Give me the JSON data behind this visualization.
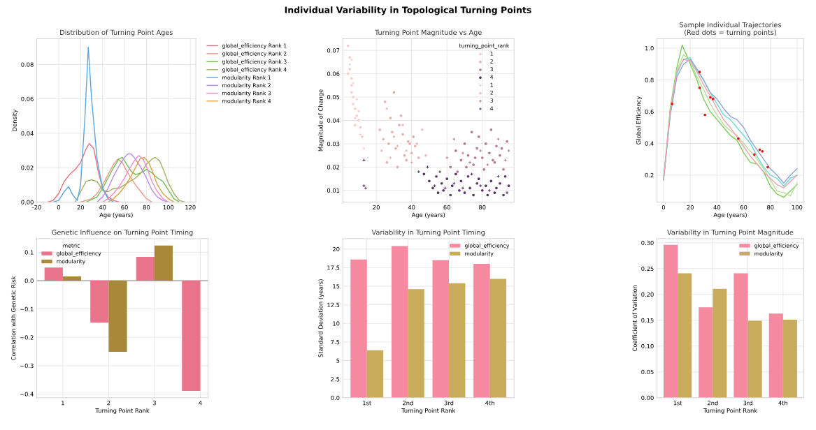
{
  "chart_data": [
    {
      "type": "line",
      "title": "Distribution of Turning Point Ages",
      "xlabel": "Age (years)",
      "ylabel": "Density",
      "annotations": [
        "Individual Variability in Topological Turning Points"
      ],
      "xlim": [
        -20,
        125
      ],
      "ylim": [
        0,
        0.095
      ],
      "xticks": [
        -20,
        0,
        20,
        40,
        60,
        80,
        100,
        120
      ],
      "yticks": [
        {
          "value": 0,
          "label": "0.00"
        },
        {
          "value": 0.02,
          "label": "0.02"
        },
        {
          "value": 0.04,
          "label": "0.04"
        },
        {
          "value": 0.06,
          "label": "0.06"
        },
        {
          "value": 0.08,
          "label": "0.08"
        }
      ],
      "grid": true,
      "legend": "right",
      "series": [
        {
          "name": "global_efficiency Rank 1",
          "color": "#e8707e",
          "x": [
            -10,
            -5,
            0,
            5,
            10,
            15,
            20,
            25,
            28,
            32,
            36,
            40,
            45,
            50,
            55
          ],
          "values": [
            0,
            0.001,
            0.005,
            0.012,
            0.016,
            0.019,
            0.023,
            0.031,
            0.034,
            0.031,
            0.018,
            0.008,
            0.003,
            0.001,
            0
          ]
        },
        {
          "name": "global_efficiency Rank 2",
          "color": "#e89a8a",
          "x": [
            20,
            30,
            35,
            40,
            45,
            50,
            54,
            58,
            62,
            66,
            70,
            75,
            80,
            85
          ],
          "values": [
            0,
            0.002,
            0.005,
            0.01,
            0.016,
            0.022,
            0.025,
            0.023,
            0.018,
            0.014,
            0.01,
            0.006,
            0.002,
            0
          ]
        },
        {
          "name": "global_efficiency Rank 3",
          "color": "#6fbf50",
          "x": [
            25,
            35,
            40,
            45,
            50,
            55,
            58,
            62,
            66,
            70,
            75,
            80,
            85,
            90,
            95,
            100,
            105,
            110
          ],
          "values": [
            0,
            0.003,
            0.008,
            0.014,
            0.02,
            0.025,
            0.026,
            0.022,
            0.018,
            0.016,
            0.017,
            0.019,
            0.017,
            0.014,
            0.012,
            0.007,
            0.002,
            0
          ]
        },
        {
          "name": "global_efficiency Rank 4",
          "color": "#a4b060",
          "x": [
            15,
            20,
            25,
            30,
            35,
            40,
            45,
            50,
            55,
            60,
            65,
            70,
            75,
            80,
            85,
            88,
            92,
            96,
            100,
            105,
            110,
            115
          ],
          "values": [
            0,
            0.006,
            0.012,
            0.013,
            0.012,
            0.007,
            0.006,
            0.008,
            0.008,
            0.01,
            0.012,
            0.014,
            0.017,
            0.022,
            0.025,
            0.026,
            0.024,
            0.018,
            0.011,
            0.005,
            0.001,
            0
          ]
        },
        {
          "name": "modularity Rank 1",
          "color": "#5aa6e0",
          "x": [
            -5,
            0,
            5,
            9,
            13,
            17,
            20,
            24,
            27,
            30,
            35,
            40,
            45,
            50
          ],
          "values": [
            0,
            0.001,
            0.006,
            0.009,
            0.004,
            0.001,
            0.01,
            0.05,
            0.09,
            0.06,
            0.025,
            0.008,
            0.002,
            0
          ]
        },
        {
          "name": "modularity Rank 2",
          "color": "#b98ae8",
          "x": [
            35,
            40,
            45,
            50,
            55,
            60,
            63,
            66,
            70,
            75,
            80,
            85,
            90,
            95,
            100
          ],
          "values": [
            0,
            0.003,
            0.008,
            0.015,
            0.021,
            0.026,
            0.028,
            0.028,
            0.025,
            0.02,
            0.014,
            0.007,
            0.003,
            0.001,
            0
          ]
        },
        {
          "name": "modularity Rank 3",
          "color": "#f08cc8",
          "x": [
            40,
            45,
            50,
            55,
            60,
            65,
            70,
            73,
            77,
            81,
            85,
            90,
            95,
            100
          ],
          "values": [
            0,
            0.002,
            0.005,
            0.009,
            0.014,
            0.02,
            0.025,
            0.027,
            0.025,
            0.019,
            0.012,
            0.006,
            0.002,
            0
          ]
        },
        {
          "name": "modularity Rank 4",
          "color": "#e0a040",
          "x": [
            45,
            50,
            55,
            60,
            65,
            70,
            74,
            78,
            82,
            86,
            90,
            95,
            100,
            105
          ],
          "values": [
            0,
            0.002,
            0.005,
            0.009,
            0.014,
            0.02,
            0.025,
            0.026,
            0.023,
            0.017,
            0.01,
            0.005,
            0.002,
            0
          ]
        }
      ]
    },
    {
      "type": "scatter",
      "title": "Turning Point Magnitude vs Age",
      "xlabel": "Age (years)",
      "ylabel": "Magnitude of Change",
      "xlim": [
        1,
        98
      ],
      "ylim": [
        0.005,
        0.075
      ],
      "xticks": [
        20,
        40,
        60,
        80
      ],
      "yticks": [
        {
          "value": 0.01,
          "label": "0.01"
        },
        {
          "value": 0.02,
          "label": "0.02"
        },
        {
          "value": 0.03,
          "label": "0.03"
        },
        {
          "value": 0.04,
          "label": "0.04"
        },
        {
          "value": 0.05,
          "label": "0.05"
        },
        {
          "value": 0.06,
          "label": "0.06"
        },
        {
          "value": 0.07,
          "label": "0.07"
        }
      ],
      "grid": true,
      "legend": "top right",
      "legend_title": "turning_point_rank",
      "series": [
        {
          "name": "1",
          "color": "#f2cfc9",
          "marker": "circle",
          "x": [
            4,
            5,
            5,
            6,
            6,
            7,
            7,
            8,
            9,
            10,
            11,
            12,
            4,
            6,
            8
          ],
          "values": [
            0.072,
            0.067,
            0.062,
            0.058,
            0.055,
            0.05,
            0.047,
            0.045,
            0.042,
            0.04,
            0.037,
            0.033,
            0.06,
            0.052,
            0.038
          ]
        },
        {
          "name": "2",
          "color": "#e6b0ad",
          "marker": "circle",
          "x": [
            22,
            24,
            25,
            27,
            28,
            30,
            31,
            33,
            35,
            36,
            38,
            40,
            42,
            26,
            29,
            32,
            34,
            37,
            39,
            41,
            44
          ],
          "values": [
            0.036,
            0.032,
            0.048,
            0.03,
            0.041,
            0.052,
            0.028,
            0.038,
            0.034,
            0.025,
            0.031,
            0.026,
            0.029,
            0.022,
            0.035,
            0.02,
            0.042,
            0.023,
            0.03,
            0.033,
            0.024
          ]
        },
        {
          "name": "3",
          "color": "#b87a98",
          "marker": "circle",
          "x": [
            62,
            65,
            68,
            70,
            72,
            74,
            75,
            77,
            78,
            80,
            82,
            84,
            85,
            87,
            88,
            90,
            92,
            94,
            66,
            71,
            76,
            81,
            86,
            91
          ],
          "values": [
            0.02,
            0.027,
            0.023,
            0.03,
            0.025,
            0.035,
            0.021,
            0.028,
            0.033,
            0.024,
            0.03,
            0.026,
            0.036,
            0.022,
            0.029,
            0.025,
            0.019,
            0.031,
            0.018,
            0.02,
            0.024,
            0.019,
            0.023,
            0.028
          ]
        },
        {
          "name": "4",
          "color": "#5a3564",
          "marker": "circle",
          "x": [
            47,
            50,
            52,
            54,
            55,
            57,
            58,
            60,
            62,
            63,
            65,
            67,
            68,
            70,
            72,
            73,
            75,
            77,
            78,
            80,
            82,
            83,
            85,
            87,
            88,
            90,
            92,
            93,
            95
          ],
          "values": [
            0.017,
            0.014,
            0.011,
            0.016,
            0.009,
            0.013,
            0.01,
            0.015,
            0.008,
            0.012,
            0.017,
            0.01,
            0.014,
            0.009,
            0.016,
            0.011,
            0.008,
            0.013,
            0.015,
            0.01,
            0.012,
            0.008,
            0.014,
            0.009,
            0.011,
            0.013,
            0.008,
            0.016,
            0.012
          ]
        },
        {
          "name": "1",
          "color": "#f2cfc9",
          "marker": "cross",
          "x": [
            5,
            7,
            9,
            10,
            11,
            13,
            6,
            8
          ],
          "values": [
            0.064,
            0.056,
            0.049,
            0.044,
            0.034,
            0.028,
            0.066,
            0.041
          ]
        },
        {
          "name": "2",
          "color": "#e6b0ad",
          "marker": "cross",
          "x": [
            23,
            26,
            28,
            30,
            32,
            35,
            37,
            40,
            43,
            46,
            48
          ],
          "values": [
            0.027,
            0.045,
            0.024,
            0.033,
            0.029,
            0.038,
            0.027,
            0.022,
            0.03,
            0.036,
            0.025
          ]
        },
        {
          "name": "3",
          "color": "#b87a98",
          "marker": "cross",
          "x": [
            60,
            64,
            69,
            73,
            79,
            83,
            89,
            93,
            95
          ],
          "values": [
            0.024,
            0.032,
            0.026,
            0.022,
            0.027,
            0.021,
            0.032,
            0.023,
            0.027
          ]
        },
        {
          "name": "4",
          "color": "#5a3564",
          "marker": "cross",
          "x": [
            13,
            13,
            14,
            44,
            49,
            53,
            56,
            59,
            64,
            69,
            74,
            79,
            84,
            89,
            94
          ],
          "values": [
            0.023,
            0.012,
            0.011,
            0.018,
            0.02,
            0.012,
            0.018,
            0.011,
            0.013,
            0.011,
            0.017,
            0.012,
            0.01,
            0.016,
            0.009
          ]
        }
      ]
    },
    {
      "type": "line",
      "title": "Sample Individual Trajectories\n(Red dots = turning points)",
      "xlabel": "Age (years)",
      "ylabel": "Global Efficiency",
      "xlim": [
        -5,
        105
      ],
      "ylim": [
        0.03,
        1.06
      ],
      "xticks": [
        0,
        20,
        40,
        60,
        80,
        100
      ],
      "yticks": [
        0.2,
        0.4,
        0.6,
        0.8,
        {
          "value": 1.0,
          "label": "1.0"
        }
      ],
      "grid": true,
      "series": [
        {
          "color": "#7ccf5a",
          "x": [
            0,
            5,
            10,
            14,
            20,
            25,
            30,
            35,
            40,
            45,
            50,
            55,
            60,
            65,
            70,
            75,
            80,
            85,
            90,
            95,
            100
          ],
          "values": [
            0.17,
            0.62,
            0.88,
            1.02,
            0.9,
            0.8,
            0.68,
            0.6,
            0.55,
            0.5,
            0.45,
            0.42,
            0.34,
            0.28,
            0.27,
            0.22,
            0.13,
            0.08,
            0.06,
            0.1,
            0.14
          ]
        },
        {
          "color": "#b8e09a",
          "x": [
            0,
            5,
            10,
            15,
            20,
            25,
            30,
            35,
            40,
            45,
            50,
            55,
            60,
            65,
            70,
            75,
            80,
            85,
            90,
            95,
            100
          ],
          "values": [
            0.18,
            0.6,
            0.86,
            0.96,
            0.92,
            0.82,
            0.74,
            0.65,
            0.58,
            0.52,
            0.48,
            0.45,
            0.4,
            0.35,
            0.3,
            0.24,
            0.17,
            0.1,
            0.09,
            0.07,
            0.15
          ]
        },
        {
          "color": "#6fd8d8",
          "x": [
            0,
            5,
            10,
            15,
            20,
            25,
            30,
            35,
            40,
            45,
            50,
            55,
            60,
            65,
            70,
            75,
            80,
            85,
            90,
            95,
            100
          ],
          "values": [
            0.17,
            0.58,
            0.84,
            0.93,
            0.94,
            0.86,
            0.8,
            0.72,
            0.65,
            0.58,
            0.55,
            0.5,
            0.45,
            0.4,
            0.32,
            0.25,
            0.2,
            0.18,
            0.13,
            0.18,
            0.2
          ]
        },
        {
          "color": "#8aa6d8",
          "x": [
            0,
            5,
            10,
            15,
            20,
            25,
            30,
            35,
            40,
            45,
            50,
            55,
            60,
            65,
            70,
            75,
            80,
            85,
            90,
            95,
            100
          ],
          "values": [
            0.17,
            0.58,
            0.82,
            0.9,
            0.93,
            0.87,
            0.8,
            0.72,
            0.68,
            0.62,
            0.57,
            0.55,
            0.5,
            0.42,
            0.36,
            0.3,
            0.24,
            0.2,
            0.15,
            0.2,
            0.24
          ]
        },
        {
          "color": "#f0a0b0",
          "x": [
            0,
            5,
            10,
            15,
            20,
            25,
            30,
            35,
            40,
            45,
            50,
            55,
            60,
            65,
            70,
            75,
            80,
            85,
            90,
            95,
            100
          ],
          "values": [
            0.17,
            0.6,
            0.85,
            0.93,
            0.92,
            0.85,
            0.77,
            0.7,
            0.62,
            0.55,
            0.5,
            0.44,
            0.38,
            0.32,
            0.27,
            0.22,
            0.18,
            0.14,
            0.12,
            0.16,
            0.2
          ]
        },
        {
          "type": "scatter",
          "color": "#ee1111",
          "marker": "circle",
          "x": [
            6.4,
            27,
            27,
            35,
            37,
            31,
            56,
            68,
            72,
            74,
            78
          ],
          "values": [
            0.65,
            0.85,
            0.75,
            0.69,
            0.68,
            0.58,
            0.43,
            0.33,
            0.36,
            0.35,
            0.25
          ]
        }
      ]
    },
    {
      "type": "bar",
      "title": "Genetic Influence on Turning Point Timing",
      "xlabel": "Turning Point Rank",
      "ylabel": "Correlation with Genetic Risk",
      "categories": [
        "1",
        "2",
        "3",
        "4"
      ],
      "ylim": [
        -0.413,
        0.148
      ],
      "yticks": [
        {
          "value": 0.1,
          "label": "0.1"
        },
        {
          "value": 0,
          "label": "0.0"
        },
        {
          "value": -0.1,
          "label": "−0.1"
        },
        {
          "value": -0.2,
          "label": "−0.2"
        },
        {
          "value": -0.3,
          "label": "−0.3"
        },
        {
          "value": -0.4,
          "label": "−0.4"
        }
      ],
      "grid": true,
      "legend": "top left",
      "legend_title": "metric",
      "ref_lines": [
        {
          "axis": "y",
          "value": 0,
          "color": "#999999"
        }
      ],
      "series": [
        {
          "name": "global_efficiency",
          "color": "#e8738a",
          "values": [
            0.046,
            -0.148,
            0.084,
            -0.389
          ]
        },
        {
          "name": "modularity",
          "color": "#a8893a",
          "values": [
            0.015,
            -0.251,
            0.124,
            null
          ]
        }
      ]
    },
    {
      "type": "bar",
      "title": "Variability in Turning Point Timing",
      "xlabel": "Turning Point Rank",
      "ylabel": "Standard Deviation (years)",
      "categories": [
        "1st",
        "2nd",
        "3rd",
        "4th"
      ],
      "ylim": [
        0,
        21.4
      ],
      "yticks": [
        {
          "value": 0,
          "label": "0.0"
        },
        2.5,
        5,
        7.5,
        10,
        12.5,
        15,
        17.5,
        20
      ],
      "grid": true,
      "legend": "top right",
      "series": [
        {
          "name": "global_efficiency",
          "color": "#f4899f",
          "values": [
            18.6,
            20.4,
            18.5,
            18.0
          ]
        },
        {
          "name": "modularity",
          "color": "#c8ac5a",
          "values": [
            6.4,
            14.6,
            15.4,
            16.0
          ]
        }
      ]
    },
    {
      "type": "bar",
      "title": "Variability in Turning Point Magnitude",
      "xlabel": "Turning Point Rank",
      "ylabel": "Coefficient of Variation",
      "categories": [
        "1st",
        "2nd",
        "3rd",
        "4th"
      ],
      "ylim": [
        0,
        0.308
      ],
      "yticks": [
        {
          "value": 0,
          "label": "0.00"
        },
        {
          "value": 0.05,
          "label": "0.05"
        },
        {
          "value": 0.1,
          "label": "0.10"
        },
        {
          "value": 0.15,
          "label": "0.15"
        },
        {
          "value": 0.2,
          "label": "0.20"
        },
        {
          "value": 0.25,
          "label": "0.25"
        },
        {
          "value": 0.3,
          "label": "0.30"
        }
      ],
      "grid": true,
      "legend": "top right",
      "series": [
        {
          "name": "global_efficiency",
          "color": "#f4899f",
          "values": [
            0.296,
            0.175,
            0.241,
            0.163
          ]
        },
        {
          "name": "modularity",
          "color": "#c8ac5a",
          "values": [
            0.241,
            0.211,
            0.149,
            0.151
          ]
        }
      ]
    }
  ]
}
